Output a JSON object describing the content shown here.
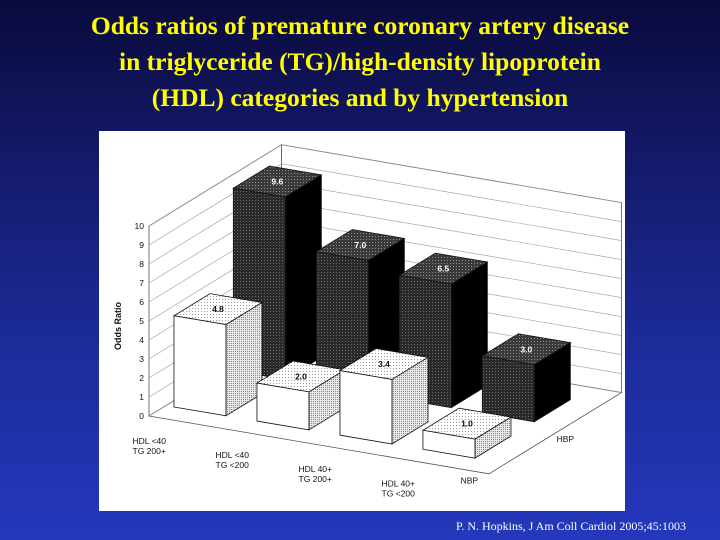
{
  "slide": {
    "title_lines": [
      "Odds ratios of premature coronary artery disease",
      "in triglyceride (TG)/high-density lipoprotein",
      "(HDL) categories and by hypertension"
    ],
    "citation": "P. N. Hopkins, J Am Coll Cardiol 2005;45:1003",
    "colors": {
      "background": "#1c2c9a",
      "title": "#ffff00",
      "citation": "#ffffff"
    }
  },
  "chart_data": {
    "type": "bar",
    "style": "3d-clustered",
    "title": "",
    "ylabel": "Odds Ratio",
    "ylim": [
      0,
      10
    ],
    "yticks": [
      0,
      1,
      2,
      3,
      4,
      5,
      6,
      7,
      8,
      9,
      10
    ],
    "grid": true,
    "categories": [
      [
        "HDL <40",
        "TG 200+"
      ],
      [
        "HDL <40",
        "TG <200"
      ],
      [
        "HDL 40+",
        "TG 200+"
      ],
      [
        "HDL 40+",
        "TG <200"
      ]
    ],
    "series": [
      {
        "name": "HBP",
        "values": [
          9.6,
          7.0,
          6.5,
          3.0
        ],
        "labels": [
          "9.6",
          "7.0",
          "6.5",
          "3.0"
        ],
        "fill": "dark"
      },
      {
        "name": "NBP",
        "values": [
          4.8,
          2.0,
          3.4,
          1.0
        ],
        "labels": [
          "4.8",
          "2.0",
          "3.4",
          "1.0"
        ],
        "fill": "white"
      }
    ]
  }
}
